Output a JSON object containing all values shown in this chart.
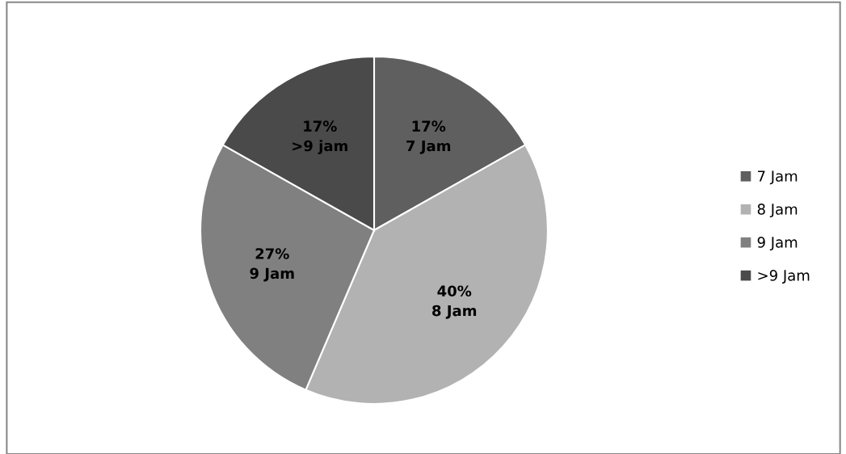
{
  "chart_data": {
    "type": "pie",
    "categories": [
      "7 Jam",
      "8 Jam",
      "9 Jam",
      ">9 Jam"
    ],
    "values": [
      17,
      40,
      27,
      17
    ],
    "colors": [
      "#5f5f5f",
      "#b2b2b2",
      "#808080",
      "#4a4a4a"
    ],
    "value_labels": [
      "17%\n7 Jam",
      "40%\n8 Jam",
      "27%\n9 Jam",
      "17%\n>9 jam"
    ],
    "legend": "right"
  }
}
